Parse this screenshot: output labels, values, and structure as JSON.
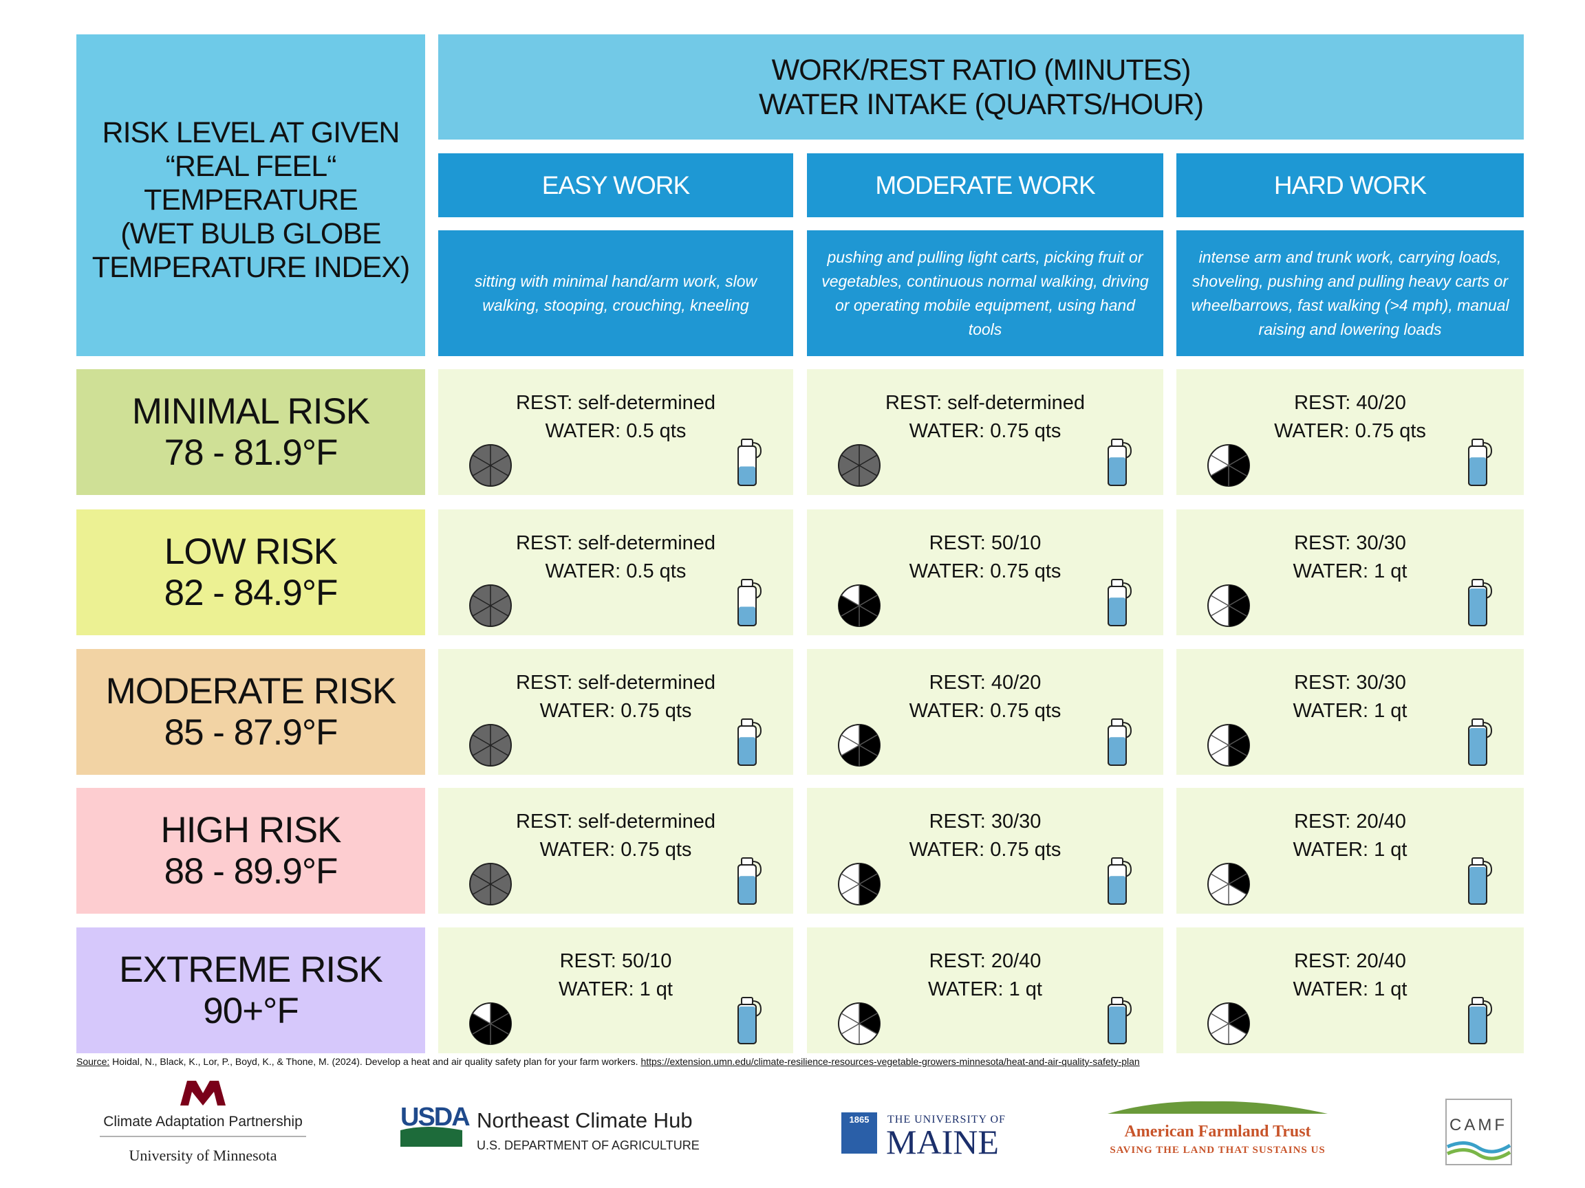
{
  "header": {
    "left": [
      "RISK LEVEL AT GIVEN",
      "“REAL FEEL“",
      "TEMPERATURE",
      "(WET BULB GLOBE",
      "TEMPERATURE INDEX)"
    ],
    "top": [
      "WORK/REST RATIO (MINUTES)",
      "WATER INTAKE (QUARTS/HOUR)"
    ]
  },
  "columns": [
    {
      "name": "EASY WORK",
      "description": "sitting with minimal hand/arm work, slow walking, stooping, crouching, kneeling"
    },
    {
      "name": "MODERATE WORK",
      "description": "pushing and pulling light carts, picking fruit or vegetables, continuous normal walking, driving or operating mobile equipment, using hand tools"
    },
    {
      "name": "HARD WORK",
      "description": "intense arm and trunk work, carrying loads, shoveling, pushing and pulling heavy carts or wheelbarrows, fast walking (>4 mph), manual raising and lowering loads"
    }
  ],
  "rows": [
    {
      "level": "MINIMAL RISK",
      "range": "78 - 81.9°F",
      "color": "#cfe096",
      "cells": [
        {
          "rest": "REST: self-determined",
          "water": "WATER: 0.5 qts"
        },
        {
          "rest": "REST: self-determined",
          "water": "WATER: 0.75 qts"
        },
        {
          "rest": "REST: 40/20",
          "water": "WATER: 0.75 qts"
        }
      ]
    },
    {
      "level": "LOW RISK",
      "range": "82 - 84.9°F",
      "color": "#ecf193",
      "cells": [
        {
          "rest": "REST: self-determined",
          "water": "WATER: 0.5 qts"
        },
        {
          "rest": "REST: 50/10",
          "water": "WATER: 0.75 qts"
        },
        {
          "rest": "REST: 30/30",
          "water": "WATER: 1 qt"
        }
      ]
    },
    {
      "level": "MODERATE RISK",
      "range": "85 - 87.9°F",
      "color": "#f2d3a4",
      "cells": [
        {
          "rest": "REST: self-determined",
          "water": "WATER: 0.75 qts"
        },
        {
          "rest": "REST: 40/20",
          "water": "WATER: 0.75 qts"
        },
        {
          "rest": "REST: 30/30",
          "water": "WATER: 1 qt"
        }
      ]
    },
    {
      "level": "HIGH RISK",
      "range": "88 - 89.9°F",
      "color": "#fdcdd0",
      "cells": [
        {
          "rest": "REST: self-determined",
          "water": "WATER: 0.75 qts"
        },
        {
          "rest": "REST: 30/30",
          "water": "WATER: 0.75 qts"
        },
        {
          "rest": "REST: 20/40",
          "water": "WATER: 1 qt"
        }
      ]
    },
    {
      "level": "EXTREME RISK",
      "range": "90+°F",
      "color": "#d6c8fb",
      "cells": [
        {
          "rest": "REST: 50/10",
          "water": "WATER: 1 qt"
        },
        {
          "rest": "REST: 20/40",
          "water": "WATER: 1 qt"
        },
        {
          "rest": "REST: 20/40",
          "water": "WATER: 1 qt"
        }
      ]
    }
  ],
  "source": {
    "label": "Source:",
    "text": "Hoidal, N., Black, K., Lor, P., Boyd, K., & Thone, M. (2024). Develop a heat and air quality safety plan for your farm workers.",
    "url": "https://extension.umn.edu/climate-resilience-resources-vegetable-growers-minnesota/heat-and-air-quality-safety-plan"
  },
  "logos": {
    "umn": {
      "line1": "Climate Adaptation Partnership",
      "line2": "University of Minnesota"
    },
    "usda": {
      "mark": "USDA",
      "line1": "Northeast Climate Hub",
      "line2": "U.S. DEPARTMENT OF AGRICULTURE"
    },
    "maine": {
      "year": "1865",
      "line1": "THE UNIVERSITY OF",
      "line2": "MAINE"
    },
    "aft": {
      "line1": "American Farmland Trust",
      "line2": "SAVING THE LAND THAT SUSTAINS US"
    },
    "camf": {
      "mark": "CAMF"
    }
  }
}
